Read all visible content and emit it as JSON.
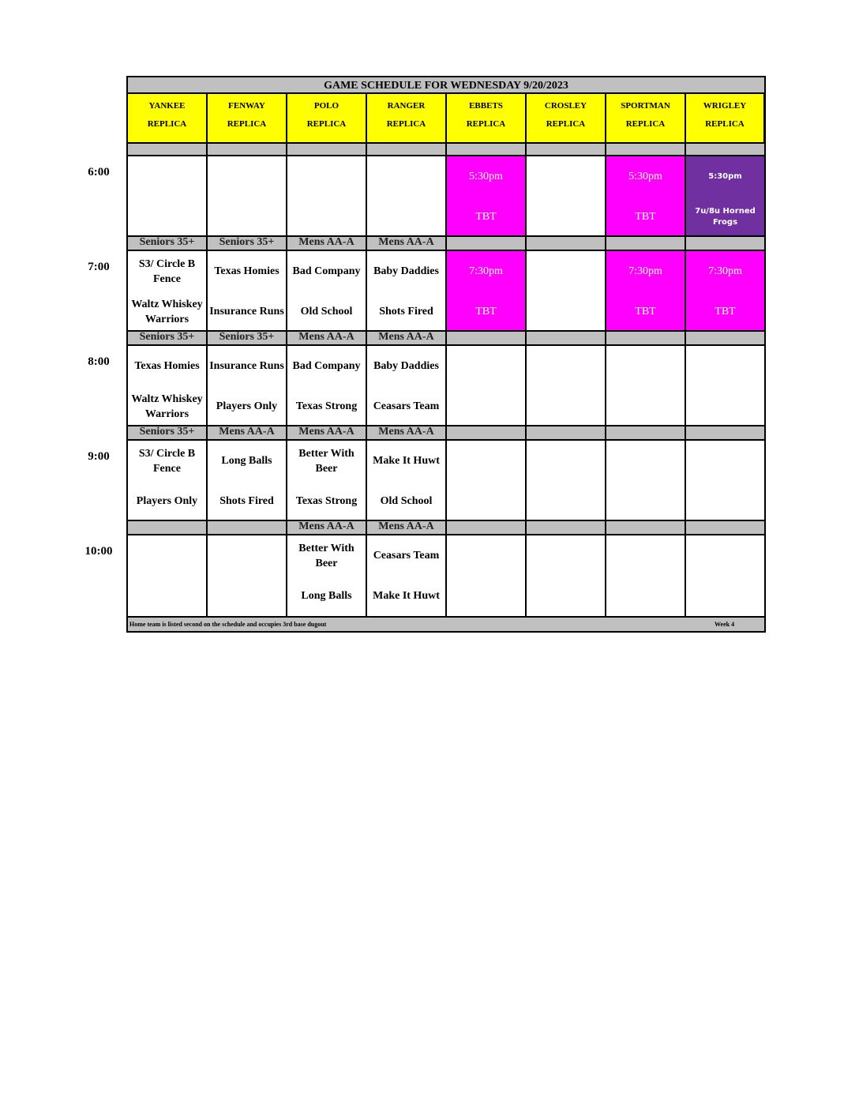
{
  "title": "GAME SCHEDULE FOR WEDNESDAY 9/20/2023",
  "colors": {
    "header": "#ffff00",
    "strip": "#c0c0c0",
    "magenta": "#ff00ff",
    "purple": "#7030a0"
  },
  "fields": [
    {
      "name": "YANKEE",
      "sub": "REPLICA"
    },
    {
      "name": "FENWAY",
      "sub": "REPLICA"
    },
    {
      "name": "POLO",
      "sub": "REPLICA"
    },
    {
      "name": "RANGER",
      "sub": "REPLICA"
    },
    {
      "name": "EBBETS",
      "sub": "REPLICA"
    },
    {
      "name": "CROSLEY",
      "sub": "REPLICA"
    },
    {
      "name": "SPORTMAN",
      "sub": "REPLICA"
    },
    {
      "name": "WRIGLEY",
      "sub": "REPLICA"
    }
  ],
  "slots": [
    {
      "time": "6:00",
      "divisions": [
        "",
        "",
        "",
        "",
        "",
        "",
        "",
        ""
      ],
      "cells": [
        {
          "top": "",
          "bottom": ""
        },
        {
          "top": "",
          "bottom": ""
        },
        {
          "top": "",
          "bottom": ""
        },
        {
          "top": "",
          "bottom": ""
        },
        {
          "top": "5:30pm",
          "bottom": "TBT",
          "color": "magenta"
        },
        {
          "top": "",
          "bottom": ""
        },
        {
          "top": "5:30pm",
          "bottom": "TBT",
          "color": "magenta"
        },
        {
          "top": "5:30pm",
          "bottom": "7u/8u Horned Frogs",
          "color": "purple"
        }
      ]
    },
    {
      "time": "7:00",
      "divisions": [
        "Seniors 35+",
        "Seniors 35+",
        "Mens AA-A",
        "Mens AA-A",
        "",
        "",
        "",
        ""
      ],
      "cells": [
        {
          "top": "S3/ Circle B Fence",
          "bottom": "Waltz Whiskey Warriors"
        },
        {
          "top": "Texas Homies",
          "bottom": "Insurance Runs"
        },
        {
          "top": "Bad Company",
          "bottom": "Old School"
        },
        {
          "top": "Baby Daddies",
          "bottom": "Shots Fired"
        },
        {
          "top": "7:30pm",
          "bottom": "TBT",
          "color": "magenta"
        },
        {
          "top": "",
          "bottom": ""
        },
        {
          "top": "7:30pm",
          "bottom": "TBT",
          "color": "magenta"
        },
        {
          "top": "7:30pm",
          "bottom": "TBT",
          "color": "magenta"
        }
      ]
    },
    {
      "time": "8:00",
      "divisions": [
        "Seniors 35+",
        "Seniors 35+",
        "Mens AA-A",
        "Mens AA-A",
        "",
        "",
        "",
        ""
      ],
      "cells": [
        {
          "top": "Texas Homies",
          "bottom": "Waltz Whiskey Warriors"
        },
        {
          "top": "Insurance Runs",
          "bottom": "Players Only"
        },
        {
          "top": "Bad Company",
          "bottom": "Texas Strong"
        },
        {
          "top": "Baby Daddies",
          "bottom": "Ceasars Team"
        },
        {
          "top": "",
          "bottom": ""
        },
        {
          "top": "",
          "bottom": ""
        },
        {
          "top": "",
          "bottom": ""
        },
        {
          "top": "",
          "bottom": ""
        }
      ]
    },
    {
      "time": "9:00",
      "divisions": [
        "Seniors 35+",
        "Mens AA-A",
        "Mens AA-A",
        "Mens AA-A",
        "",
        "",
        "",
        ""
      ],
      "cells": [
        {
          "top": "S3/ Circle B Fence",
          "bottom": "Players Only"
        },
        {
          "top": "Long Balls",
          "bottom": "Shots Fired"
        },
        {
          "top": "Better With Beer",
          "bottom": "Texas Strong"
        },
        {
          "top": "Make It Huwt",
          "bottom": "Old School"
        },
        {
          "top": "",
          "bottom": ""
        },
        {
          "top": "",
          "bottom": ""
        },
        {
          "top": "",
          "bottom": ""
        },
        {
          "top": "",
          "bottom": ""
        }
      ]
    },
    {
      "time": "10:00",
      "divisions": [
        "",
        "",
        "Mens AA-A",
        "Mens AA-A",
        "",
        "",
        "",
        ""
      ],
      "cells": [
        {
          "top": "",
          "bottom": ""
        },
        {
          "top": "",
          "bottom": ""
        },
        {
          "top": "Better With Beer",
          "bottom": "Long Balls"
        },
        {
          "top": "Ceasars Team",
          "bottom": "Make It Huwt"
        },
        {
          "top": "",
          "bottom": ""
        },
        {
          "top": "",
          "bottom": ""
        },
        {
          "top": "",
          "bottom": ""
        },
        {
          "top": "",
          "bottom": ""
        }
      ]
    }
  ],
  "footer": {
    "note": "Home team is listed second on the schedule and occupies 3rd base dugout",
    "week": "Week 4"
  }
}
